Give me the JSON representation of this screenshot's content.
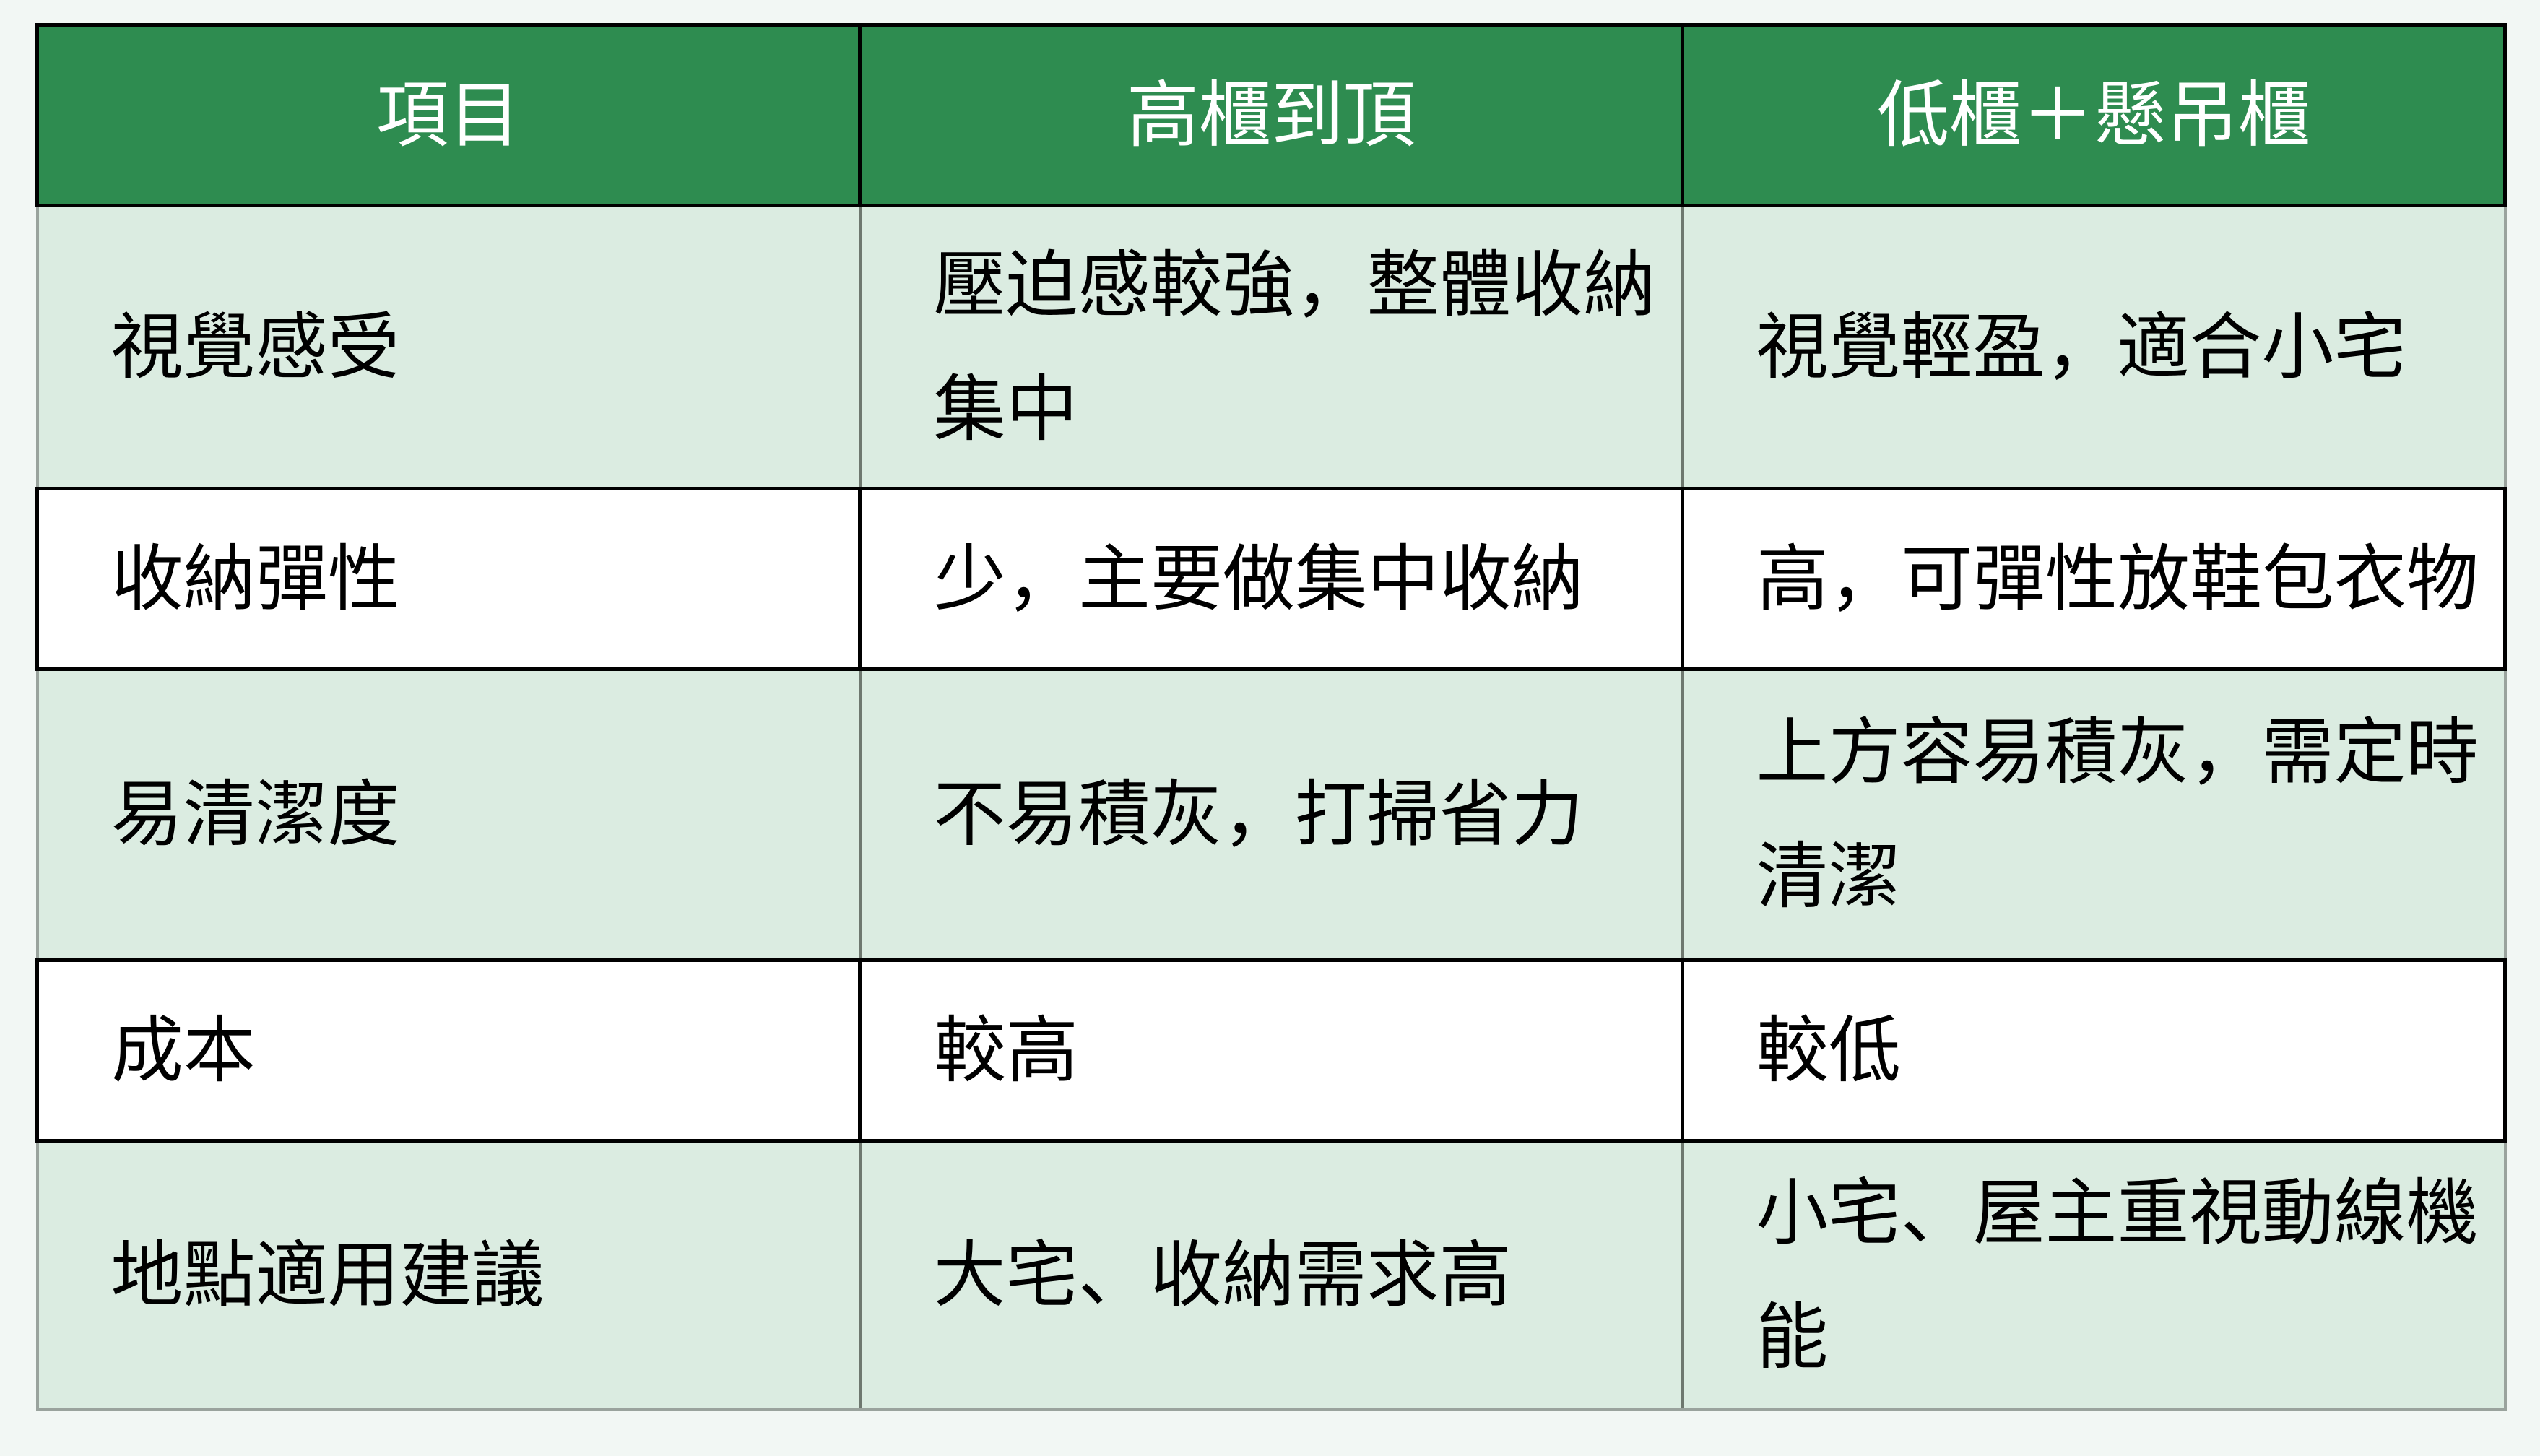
{
  "colors": {
    "page_background": "#F2F7F4",
    "header_background": "#2E8C50",
    "header_text": "#FFFFFF",
    "banded_row_background": "#DBECE1",
    "plain_row_background": "#FFFFFF",
    "body_text": "#000000",
    "dark_border": "#000000",
    "light_border": "#9AA39D",
    "band_inner_border": "#6E786F"
  },
  "table": {
    "headers": [
      "項目",
      "高櫃到頂",
      "低櫃＋懸吊櫃"
    ],
    "rows": [
      [
        "視覺感受",
        "壓迫感較強，整體收納集中",
        "視覺輕盈，適合小宅"
      ],
      [
        "收納彈性",
        "少，主要做集中收納",
        "高，可彈性放鞋包衣物"
      ],
      [
        "易清潔度",
        "不易積灰，打掃省力",
        "上方容易積灰，需定時清潔"
      ],
      [
        "成本",
        "較高",
        "較低"
      ],
      [
        "地點適用建議",
        "大宅、收納需求高",
        "小宅、屋主重視動線機能"
      ]
    ]
  }
}
